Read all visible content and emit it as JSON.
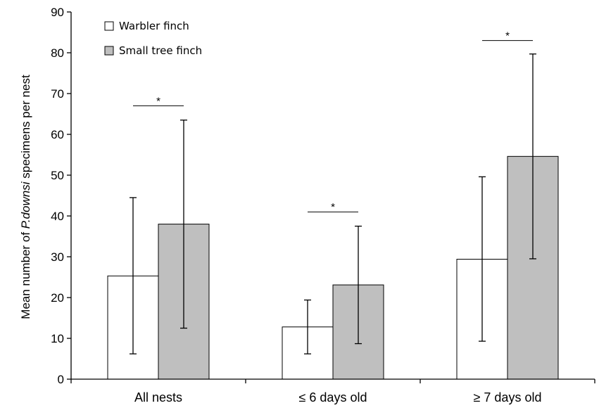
{
  "chart_data": {
    "type": "bar",
    "title": "",
    "ylabel_parts": {
      "prefix": "Mean number of ",
      "italic": "P.downsi",
      "suffix": " specimens per nest"
    },
    "xlabel": "",
    "ylim": [
      0,
      90
    ],
    "yticks": [
      0,
      10,
      20,
      30,
      40,
      50,
      60,
      70,
      80,
      90
    ],
    "categories": [
      "All nests",
      "≤ 6 days old",
      "≥ 7 days old"
    ],
    "series": [
      {
        "name": "Warbler finch",
        "color": "#ffffff",
        "values": [
          25.3,
          12.8,
          29.4
        ],
        "err_low": [
          6.2,
          6.2,
          9.3
        ],
        "err_high": [
          44.5,
          19.4,
          49.6
        ]
      },
      {
        "name": "Small tree finch",
        "color": "#bfbfbf",
        "values": [
          38.0,
          23.1,
          54.6
        ],
        "err_low": [
          12.5,
          8.7,
          29.5
        ],
        "err_high": [
          63.5,
          37.5,
          79.7
        ]
      }
    ],
    "significance": [
      {
        "category": 0,
        "label": "*",
        "y": 67
      },
      {
        "category": 1,
        "label": "*",
        "y": 41
      },
      {
        "category": 2,
        "label": "*",
        "y": 83
      }
    ],
    "legend_position": "top-left",
    "grid": false
  }
}
